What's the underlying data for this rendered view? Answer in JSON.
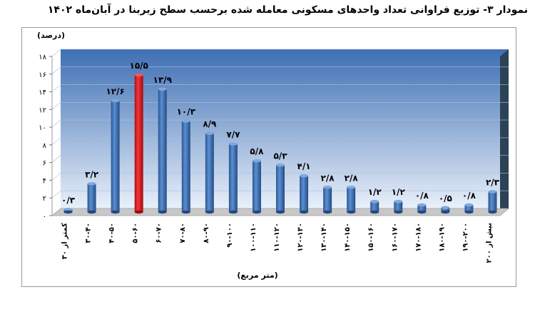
{
  "title": "نمودار ۳- توزیع فراوانی تعداد واحدهای مسکونی معامله شده برحسب سطح زیربنا در آبان‌ماه ۱۴۰۲",
  "chart_data": {
    "type": "bar",
    "ylabel": "(درصد)",
    "xlabel": "(متر مربع)",
    "ylim": [
      0,
      18
    ],
    "yticks": [
      0,
      2,
      4,
      6,
      8,
      10,
      12,
      14,
      16,
      18
    ],
    "ytick_labels": [
      "۰",
      "۲",
      "۴",
      "۶",
      "۸",
      "۱۰",
      "۱۲",
      "۱۴",
      "۱۶",
      "۱۸"
    ],
    "grid": true,
    "legend": "none",
    "categories": [
      "کمتر از ۳۰",
      "۳۰-۴۰",
      "۴۰-۵۰",
      "۵۰-۶۰",
      "۶۰-۷۰",
      "۷۰-۸۰",
      "۸۰-۹۰",
      "۹۰-۱۰۰",
      "۱۰۰-۱۱۰",
      "۱۱۰-۱۲۰",
      "۱۲۰-۱۳۰",
      "۱۳۰-۱۴۰",
      "۱۴۰-۱۵۰",
      "۱۵۰-۱۶۰",
      "۱۶۰-۱۷۰",
      "۱۷۰-۱۸۰",
      "۱۸۰-۱۹۰",
      "۱۹۰-۲۰۰",
      "بیش از ۲۰۰"
    ],
    "values": [
      0.3,
      3.2,
      12.6,
      15.5,
      13.9,
      10.3,
      8.9,
      7.7,
      5.8,
      5.3,
      4.1,
      2.8,
      2.8,
      1.2,
      1.2,
      0.8,
      0.5,
      0.8,
      2.3
    ],
    "value_labels": [
      "۰/۳",
      "۳/۲",
      "۱۲/۶",
      "۱۵/۵",
      "۱۳/۹",
      "۱۰/۳",
      "۸/۹",
      "۷/۷",
      "۵/۸",
      "۵/۳",
      "۴/۱",
      "۲/۸",
      "۲/۸",
      "۱/۲",
      "۱/۲",
      "۰/۸",
      "۰/۵",
      "۰/۸",
      "۲/۳"
    ],
    "colors": {
      "bar": "#3d72b6",
      "highlight": "#e4171b",
      "plot_bg_top": "#3e6fb4",
      "plot_bg_bottom": "#e9f0fa",
      "floor": "#c8c8c8",
      "wall_side": "#2c4255"
    },
    "highlight_index": 3
  }
}
